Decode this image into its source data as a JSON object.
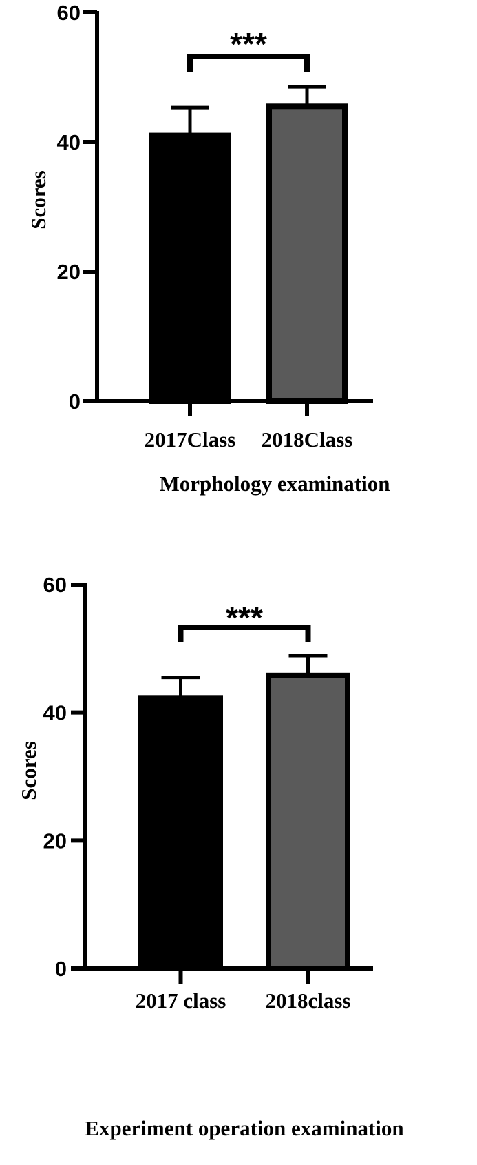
{
  "chart_data": [
    {
      "type": "bar",
      "categories": [
        "2017Class",
        "2018Class"
      ],
      "values": [
        41,
        45.5
      ],
      "errors": [
        4.3,
        3
      ],
      "colors": [
        "#000000",
        "#5a5a5a"
      ],
      "xlabel": "Morphology examination",
      "ylabel": "Scores",
      "ylim": [
        0,
        60
      ],
      "yticks": [
        0,
        20,
        40,
        60
      ],
      "significance": "***",
      "grid": false
    },
    {
      "type": "bar",
      "categories": [
        "2017 class",
        "2018class"
      ],
      "values": [
        42.3,
        45.8
      ],
      "errors": [
        3.2,
        3.1
      ],
      "colors": [
        "#000000",
        "#5a5a5a"
      ],
      "xlabel": "Experiment operation examination",
      "ylabel": "Scores",
      "ylim": [
        0,
        60
      ],
      "yticks": [
        0,
        20,
        40,
        60
      ],
      "significance": "***",
      "grid": false
    }
  ]
}
